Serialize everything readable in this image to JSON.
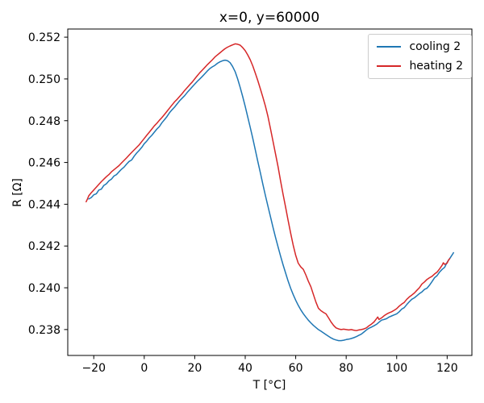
{
  "chart_data": {
    "type": "line",
    "title": "x=0, y=60000",
    "xlabel": "T [°C]",
    "ylabel": "R [Ω]",
    "xlim": [
      -30.3,
      129.8
    ],
    "ylim": [
      0.23676,
      0.25239
    ],
    "grid": false,
    "legend": {
      "position": "upper right",
      "entries": [
        "cooling 2",
        "heating 2"
      ]
    },
    "xticks": {
      "values": [
        -20,
        0,
        20,
        40,
        60,
        80,
        100,
        120
      ],
      "labels": [
        "−20",
        "0",
        "20",
        "40",
        "60",
        "80",
        "100",
        "120"
      ]
    },
    "yticks": {
      "values": [
        0.238,
        0.24,
        0.242,
        0.244,
        0.246,
        0.248,
        0.25,
        0.252
      ],
      "labels": [
        "0.238",
        "0.240",
        "0.242",
        "0.244",
        "0.246",
        "0.248",
        "0.250",
        "0.252"
      ]
    },
    "series": [
      {
        "name": "cooling 2",
        "color": "#1f77b4",
        "points": [
          [
            -22,
            0.24425
          ],
          [
            -21,
            0.24432
          ],
          [
            -20,
            0.24445
          ],
          [
            -19,
            0.2445
          ],
          [
            -18,
            0.24468
          ],
          [
            -17,
            0.24472
          ],
          [
            -16,
            0.2449
          ],
          [
            -15,
            0.24498
          ],
          [
            -14,
            0.24512
          ],
          [
            -13,
            0.2452
          ],
          [
            -12,
            0.24535
          ],
          [
            -11,
            0.24542
          ],
          [
            -10,
            0.24555
          ],
          [
            -9,
            0.24568
          ],
          [
            -8,
            0.24578
          ],
          [
            -7,
            0.24592
          ],
          [
            -6,
            0.24605
          ],
          [
            -5,
            0.24612
          ],
          [
            -4,
            0.2463
          ],
          [
            -3,
            0.24645
          ],
          [
            -2,
            0.24658
          ],
          [
            -1,
            0.24672
          ],
          [
            0,
            0.2469
          ],
          [
            1,
            0.24702
          ],
          [
            2,
            0.24718
          ],
          [
            3,
            0.2473
          ],
          [
            4,
            0.24745
          ],
          [
            5,
            0.2476
          ],
          [
            6,
            0.24772
          ],
          [
            7,
            0.2479
          ],
          [
            8,
            0.24805
          ],
          [
            9,
            0.2482
          ],
          [
            10,
            0.24838
          ],
          [
            11,
            0.24852
          ],
          [
            12,
            0.24865
          ],
          [
            13,
            0.2488
          ],
          [
            14,
            0.24895
          ],
          [
            15,
            0.24908
          ],
          [
            16,
            0.2492
          ],
          [
            17,
            0.24935
          ],
          [
            18,
            0.24948
          ],
          [
            19,
            0.24962
          ],
          [
            20,
            0.24975
          ],
          [
            21,
            0.24988
          ],
          [
            22,
            0.25
          ],
          [
            23,
            0.25012
          ],
          [
            24,
            0.25025
          ],
          [
            25,
            0.25038
          ],
          [
            26,
            0.2505
          ],
          [
            27,
            0.25058
          ],
          [
            28,
            0.25065
          ],
          [
            29,
            0.25075
          ],
          [
            30,
            0.25082
          ],
          [
            31,
            0.25087
          ],
          [
            32,
            0.2509
          ],
          [
            33,
            0.25087
          ],
          [
            34,
            0.25078
          ],
          [
            35,
            0.2506
          ],
          [
            36,
            0.25035
          ],
          [
            37,
            0.25
          ],
          [
            38,
            0.2496
          ],
          [
            39,
            0.24915
          ],
          [
            40,
            0.24868
          ],
          [
            41,
            0.24818
          ],
          [
            42,
            0.24768
          ],
          [
            43,
            0.24715
          ],
          [
            44,
            0.2466
          ],
          [
            45,
            0.24605
          ],
          [
            46,
            0.2455
          ],
          [
            47,
            0.24495
          ],
          [
            48,
            0.24442
          ],
          [
            49,
            0.2439
          ],
          [
            50,
            0.2434
          ],
          [
            51,
            0.2429
          ],
          [
            52,
            0.24242
          ],
          [
            53,
            0.24196
          ],
          [
            54,
            0.24152
          ],
          [
            55,
            0.2411
          ],
          [
            56,
            0.2407
          ],
          [
            57,
            0.24032
          ],
          [
            58,
            0.23998
          ],
          [
            59,
            0.23968
          ],
          [
            60,
            0.2394
          ],
          [
            61,
            0.23916
          ],
          [
            62,
            0.23895
          ],
          [
            63,
            0.23876
          ],
          [
            64,
            0.2386
          ],
          [
            65,
            0.23845
          ],
          [
            66,
            0.23832
          ],
          [
            67,
            0.2382
          ],
          [
            68,
            0.2381
          ],
          [
            69,
            0.238
          ],
          [
            70,
            0.23792
          ],
          [
            71,
            0.23784
          ],
          [
            72,
            0.23776
          ],
          [
            73,
            0.23768
          ],
          [
            74,
            0.2376
          ],
          [
            75,
            0.23754
          ],
          [
            76,
            0.2375
          ],
          [
            77,
            0.23747
          ],
          [
            78,
            0.23747
          ],
          [
            79,
            0.23749
          ],
          [
            80,
            0.23752
          ],
          [
            81,
            0.23754
          ],
          [
            82,
            0.23757
          ],
          [
            83,
            0.23761
          ],
          [
            84,
            0.23766
          ],
          [
            85,
            0.23772
          ],
          [
            86,
            0.23778
          ],
          [
            87,
            0.23788
          ],
          [
            88,
            0.23798
          ],
          [
            89,
            0.23806
          ],
          [
            90,
            0.23812
          ],
          [
            91,
            0.23818
          ],
          [
            92,
            0.23825
          ],
          [
            93,
            0.23835
          ],
          [
            94,
            0.23845
          ],
          [
            95,
            0.23848
          ],
          [
            96,
            0.23852
          ],
          [
            97,
            0.2386
          ],
          [
            98,
            0.23865
          ],
          [
            99,
            0.2387
          ],
          [
            100,
            0.23875
          ],
          [
            101,
            0.23885
          ],
          [
            102,
            0.23898
          ],
          [
            103,
            0.23905
          ],
          [
            104,
            0.2392
          ],
          [
            105,
            0.23933
          ],
          [
            106,
            0.23945
          ],
          [
            107,
            0.23952
          ],
          [
            108,
            0.23962
          ],
          [
            109,
            0.23972
          ],
          [
            110,
            0.2398
          ],
          [
            111,
            0.23992
          ],
          [
            112,
            0.23998
          ],
          [
            113,
            0.24012
          ],
          [
            114,
            0.2403
          ],
          [
            115,
            0.24048
          ],
          [
            116,
            0.24058
          ],
          [
            117,
            0.24075
          ],
          [
            118,
            0.24088
          ],
          [
            119,
            0.24098
          ],
          [
            120,
            0.24122
          ],
          [
            121,
            0.2414
          ],
          [
            122,
            0.24158
          ],
          [
            122.5,
            0.24168
          ]
        ]
      },
      {
        "name": "heating 2",
        "color": "#d62728",
        "points": [
          [
            -23,
            0.24412
          ],
          [
            -22.5,
            0.24425
          ],
          [
            -22,
            0.2444
          ],
          [
            -21,
            0.24455
          ],
          [
            -20,
            0.24468
          ],
          [
            -19,
            0.24482
          ],
          [
            -18,
            0.24495
          ],
          [
            -17,
            0.24508
          ],
          [
            -16,
            0.2452
          ],
          [
            -15,
            0.24532
          ],
          [
            -14,
            0.24542
          ],
          [
            -13,
            0.24555
          ],
          [
            -12,
            0.24565
          ],
          [
            -11,
            0.24575
          ],
          [
            -10,
            0.24585
          ],
          [
            -9,
            0.24598
          ],
          [
            -8,
            0.2461
          ],
          [
            -7,
            0.24622
          ],
          [
            -6,
            0.24635
          ],
          [
            -5,
            0.24648
          ],
          [
            -4,
            0.2466
          ],
          [
            -3,
            0.24672
          ],
          [
            -2,
            0.24685
          ],
          [
            -1,
            0.247
          ],
          [
            0,
            0.24715
          ],
          [
            1,
            0.2473
          ],
          [
            2,
            0.24745
          ],
          [
            3,
            0.2476
          ],
          [
            4,
            0.24775
          ],
          [
            5,
            0.24788
          ],
          [
            6,
            0.24802
          ],
          [
            7,
            0.24815
          ],
          [
            8,
            0.2483
          ],
          [
            9,
            0.24845
          ],
          [
            10,
            0.2486
          ],
          [
            11,
            0.24875
          ],
          [
            12,
            0.2489
          ],
          [
            13,
            0.24902
          ],
          [
            14,
            0.24916
          ],
          [
            15,
            0.2493
          ],
          [
            16,
            0.24945
          ],
          [
            17,
            0.24958
          ],
          [
            18,
            0.24972
          ],
          [
            19,
            0.24985
          ],
          [
            20,
            0.25
          ],
          [
            21,
            0.25015
          ],
          [
            22,
            0.2503
          ],
          [
            23,
            0.25042
          ],
          [
            24,
            0.25055
          ],
          [
            25,
            0.25068
          ],
          [
            26,
            0.2508
          ],
          [
            27,
            0.25092
          ],
          [
            28,
            0.25105
          ],
          [
            29,
            0.25115
          ],
          [
            30,
            0.25125
          ],
          [
            31,
            0.25135
          ],
          [
            32,
            0.25145
          ],
          [
            33,
            0.25152
          ],
          [
            34,
            0.25158
          ],
          [
            35,
            0.25163
          ],
          [
            36,
            0.25168
          ],
          [
            37,
            0.25166
          ],
          [
            38,
            0.25162
          ],
          [
            39,
            0.2515
          ],
          [
            40,
            0.25135
          ],
          [
            41,
            0.25115
          ],
          [
            42,
            0.25092
          ],
          [
            43,
            0.25062
          ],
          [
            44,
            0.25028
          ],
          [
            45,
            0.24992
          ],
          [
            46,
            0.24952
          ],
          [
            47,
            0.24912
          ],
          [
            48,
            0.2487
          ],
          [
            49,
            0.2482
          ],
          [
            50,
            0.24762
          ],
          [
            51,
            0.24702
          ],
          [
            52,
            0.24642
          ],
          [
            53,
            0.2458
          ],
          [
            54,
            0.24512
          ],
          [
            55,
            0.24448
          ],
          [
            56,
            0.24385
          ],
          [
            57,
            0.24322
          ],
          [
            58,
            0.24262
          ],
          [
            59,
            0.24205
          ],
          [
            60,
            0.24155
          ],
          [
            61,
            0.24118
          ],
          [
            62,
            0.241
          ],
          [
            63,
            0.24088
          ],
          [
            64,
            0.24062
          ],
          [
            65,
            0.24032
          ],
          [
            66,
            0.24005
          ],
          [
            67,
            0.23968
          ],
          [
            68,
            0.23932
          ],
          [
            69,
            0.23902
          ],
          [
            70,
            0.2389
          ],
          [
            71,
            0.23882
          ],
          [
            72,
            0.23875
          ],
          [
            73,
            0.23856
          ],
          [
            74,
            0.23836
          ],
          [
            75,
            0.2382
          ],
          [
            76,
            0.23808
          ],
          [
            77,
            0.23803
          ],
          [
            78,
            0.238
          ],
          [
            79,
            0.23802
          ],
          [
            80,
            0.238
          ],
          [
            81,
            0.23798
          ],
          [
            82,
            0.238
          ],
          [
            83,
            0.23797
          ],
          [
            84,
            0.23795
          ],
          [
            85,
            0.23798
          ],
          [
            86,
            0.238
          ],
          [
            87,
            0.23803
          ],
          [
            88,
            0.23808
          ],
          [
            89,
            0.23818
          ],
          [
            90,
            0.23826
          ],
          [
            91,
            0.23836
          ],
          [
            92,
            0.23852
          ],
          [
            92.5,
            0.2386
          ],
          [
            93,
            0.23848
          ],
          [
            94,
            0.23856
          ],
          [
            95,
            0.23866
          ],
          [
            96,
            0.23874
          ],
          [
            97,
            0.2388
          ],
          [
            98,
            0.23885
          ],
          [
            99,
            0.23892
          ],
          [
            100,
            0.239
          ],
          [
            101,
            0.23912
          ],
          [
            102,
            0.23922
          ],
          [
            103,
            0.2393
          ],
          [
            104,
            0.23945
          ],
          [
            105,
            0.23956
          ],
          [
            106,
            0.23965
          ],
          [
            107,
            0.23975
          ],
          [
            108,
            0.23988
          ],
          [
            109,
            0.24
          ],
          [
            110,
            0.24018
          ],
          [
            111,
            0.24028
          ],
          [
            112,
            0.2404
          ],
          [
            113,
            0.24048
          ],
          [
            114,
            0.24055
          ],
          [
            115,
            0.24066
          ],
          [
            116,
            0.24075
          ],
          [
            117,
            0.2409
          ],
          [
            118,
            0.24108
          ],
          [
            118.5,
            0.2412
          ],
          [
            119,
            0.24112
          ],
          [
            120,
            0.24118
          ],
          [
            120.5,
            0.24132
          ],
          [
            121,
            0.2414
          ]
        ]
      }
    ]
  },
  "colors": {
    "background": "#ffffff",
    "spine": "#000000",
    "tick": "#000000",
    "legend_border": "#cccccc"
  }
}
